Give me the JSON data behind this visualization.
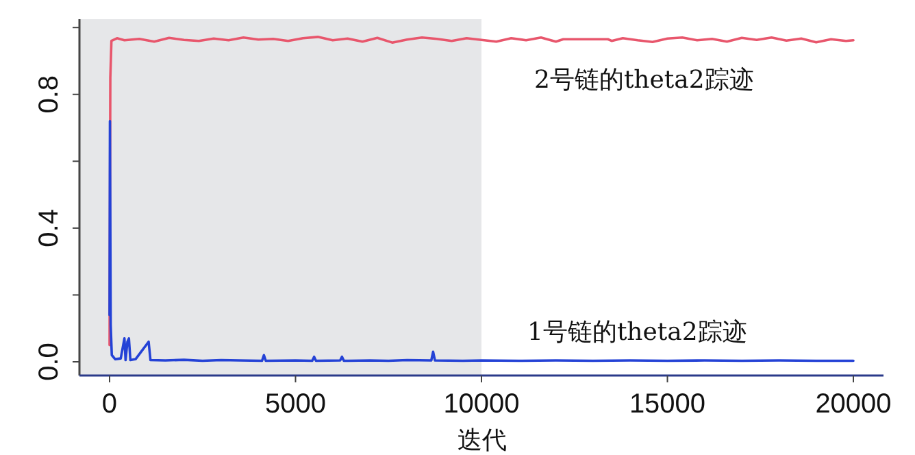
{
  "chart_data": {
    "type": "line",
    "xlabel": "迭代",
    "annotations": [
      "2号链的theta2踪迹",
      "1号链的theta2踪迹"
    ],
    "xlim": [
      -810,
      20810
    ],
    "ylim": [
      -0.041,
      1.025
    ],
    "xticks": [
      0,
      5000,
      10000,
      15000,
      20000
    ],
    "yticks": [
      {
        "value": 0,
        "label": "0.0"
      },
      {
        "value": 0.2,
        "label": null
      },
      0.4,
      {
        "value": 0.6,
        "label": null
      },
      0.8,
      {
        "value": 1.0,
        "label": null
      }
    ],
    "bands": [
      {
        "axis": "x",
        "from": -810,
        "to": 10000,
        "color": "#e6e7e9"
      }
    ],
    "series": [
      {
        "color": "#e8566c",
        "x": [
          0,
          20,
          50,
          200,
          400,
          800,
          1200,
          1600,
          2000,
          2400,
          2800,
          3200,
          3600,
          4000,
          4400,
          4800,
          5200,
          5600,
          6000,
          6400,
          6800,
          7200,
          7600,
          8000,
          8400,
          8800,
          9200,
          9600,
          10000,
          10400,
          10800,
          11200,
          11600,
          12000,
          12200,
          13400,
          13500,
          13800,
          14200,
          14600,
          15000,
          15400,
          15800,
          16200,
          16600,
          17000,
          17400,
          17800,
          18200,
          18600,
          19000,
          19400,
          19800,
          20000
        ],
        "values": [
          0.05,
          0.85,
          0.96,
          0.968,
          0.962,
          0.966,
          0.958,
          0.969,
          0.963,
          0.96,
          0.967,
          0.962,
          0.97,
          0.964,
          0.966,
          0.96,
          0.968,
          0.972,
          0.962,
          0.967,
          0.958,
          0.969,
          0.955,
          0.964,
          0.97,
          0.966,
          0.96,
          0.968,
          0.963,
          0.958,
          0.968,
          0.962,
          0.97,
          0.958,
          0.965,
          0.965,
          0.96,
          0.968,
          0.962,
          0.957,
          0.967,
          0.97,
          0.962,
          0.966,
          0.958,
          0.969,
          0.963,
          0.97,
          0.961,
          0.967,
          0.956,
          0.965,
          0.96,
          0.962
        ]
      },
      {
        "color": "#2442d6",
        "x": [
          0,
          10,
          30,
          60,
          150,
          300,
          400,
          430,
          480,
          520,
          560,
          700,
          1050,
          1100,
          1500,
          2000,
          2500,
          3000,
          3500,
          4100,
          4150,
          4200,
          5000,
          5450,
          5500,
          5550,
          6200,
          6250,
          6300,
          7000,
          7500,
          8000,
          8650,
          8700,
          8750,
          9500,
          10000,
          11000,
          12000,
          13000,
          14000,
          15000,
          16000,
          17000,
          18000,
          19000,
          20000
        ],
        "values": [
          0.14,
          0.72,
          0.11,
          0.02,
          0.008,
          0.01,
          0.07,
          0.005,
          0.06,
          0.07,
          0.005,
          0.008,
          0.06,
          0.005,
          0.004,
          0.006,
          0.003,
          0.005,
          0.004,
          0.003,
          0.02,
          0.003,
          0.004,
          0.003,
          0.015,
          0.003,
          0.004,
          0.015,
          0.003,
          0.004,
          0.003,
          0.005,
          0.004,
          0.03,
          0.004,
          0.003,
          0.004,
          0.003,
          0.004,
          0.003,
          0.004,
          0.003,
          0.004,
          0.003,
          0.004,
          0.003,
          0.003
        ]
      }
    ]
  }
}
